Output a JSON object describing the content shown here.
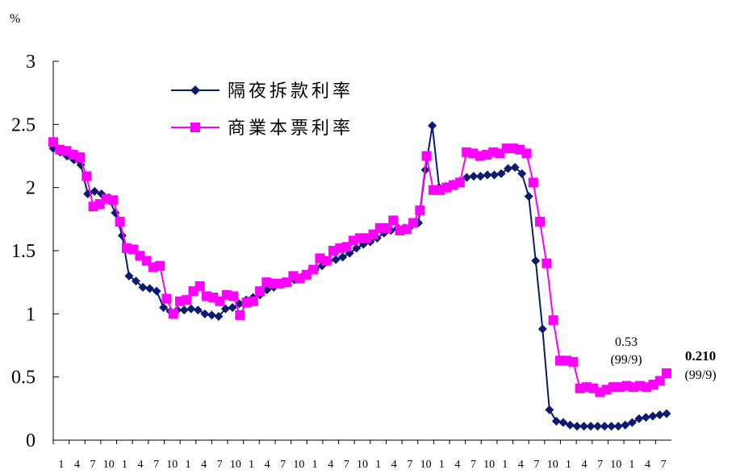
{
  "chart_data": {
    "type": "line",
    "unit_label": "%",
    "ylim": [
      0,
      3
    ],
    "yticks": [
      0,
      0.5,
      1,
      1.5,
      2,
      2.5,
      3
    ],
    "ytick_labels": [
      "0",
      "0.5",
      "1",
      "1.5",
      "2",
      "2.5",
      "3"
    ],
    "xtick_labels": [
      "1",
      "4",
      "7",
      "10",
      "1",
      "4",
      "7",
      "10",
      "1",
      "4",
      "7",
      "10",
      "1",
      "4",
      "7",
      "10",
      "1",
      "4",
      "7",
      "10",
      "1",
      "4",
      "7",
      "10",
      "1",
      "4",
      "7",
      "10",
      "1",
      "4",
      "7",
      "10",
      "1",
      "4",
      "7",
      "10",
      "1",
      "4",
      "7"
    ],
    "grid": false,
    "legend_position": "top-left",
    "series": [
      {
        "name": "隔夜拆款利率",
        "color": "#0d1a6e",
        "marker": "diamond",
        "values": [
          2.31,
          2.28,
          2.25,
          2.22,
          2.18,
          1.95,
          1.97,
          1.95,
          1.92,
          1.8,
          1.62,
          1.3,
          1.26,
          1.21,
          1.2,
          1.18,
          1.05,
          1.02,
          1.03,
          1.03,
          1.04,
          1.03,
          1.0,
          0.99,
          0.98,
          1.04,
          1.05,
          1.08,
          1.11,
          1.13,
          1.15,
          1.19,
          1.21,
          1.23,
          1.25,
          1.27,
          1.29,
          1.32,
          1.35,
          1.38,
          1.42,
          1.43,
          1.45,
          1.48,
          1.52,
          1.55,
          1.57,
          1.6,
          1.64,
          1.66,
          1.68,
          1.68,
          1.7,
          1.72,
          2.14,
          2.49,
          2.0,
          2.01,
          2.03,
          2.05,
          2.08,
          2.09,
          2.09,
          2.1,
          2.1,
          2.11,
          2.15,
          2.16,
          2.11,
          1.93,
          1.42,
          0.88,
          0.24,
          0.15,
          0.14,
          0.12,
          0.11,
          0.11,
          0.11,
          0.11,
          0.11,
          0.11,
          0.11,
          0.12,
          0.14,
          0.17,
          0.18,
          0.19,
          0.2,
          0.21
        ]
      },
      {
        "name": "商業本票利率",
        "color": "#ff00ff",
        "marker": "square",
        "values": [
          2.36,
          2.3,
          2.29,
          2.26,
          2.24,
          2.09,
          1.85,
          1.87,
          1.91,
          1.9,
          1.73,
          1.52,
          1.51,
          1.46,
          1.42,
          1.37,
          1.38,
          1.12,
          1.0,
          1.1,
          1.11,
          1.18,
          1.22,
          1.14,
          1.13,
          1.1,
          1.15,
          1.14,
          0.99,
          1.09,
          1.1,
          1.18,
          1.25,
          1.24,
          1.24,
          1.25,
          1.3,
          1.28,
          1.31,
          1.35,
          1.44,
          1.42,
          1.5,
          1.52,
          1.53,
          1.58,
          1.6,
          1.6,
          1.63,
          1.68,
          1.68,
          1.74,
          1.66,
          1.67,
          1.72,
          1.82,
          2.25,
          1.98,
          1.98,
          2.0,
          2.02,
          2.04,
          2.28,
          2.27,
          2.25,
          2.26,
          2.28,
          2.27,
          2.31,
          2.31,
          2.3,
          2.27,
          2.04,
          1.73,
          1.4,
          0.95,
          0.63,
          0.63,
          0.62,
          0.41,
          0.42,
          0.41,
          0.38,
          0.4,
          0.42,
          0.42,
          0.43,
          0.42,
          0.43,
          0.42,
          0.44,
          0.47,
          0.53
        ]
      }
    ],
    "annotations": [
      {
        "text": "0.53",
        "sub": "(99/9)",
        "series": 1
      },
      {
        "text": "0.210",
        "sub": "(99/9)",
        "series": 0
      }
    ]
  }
}
